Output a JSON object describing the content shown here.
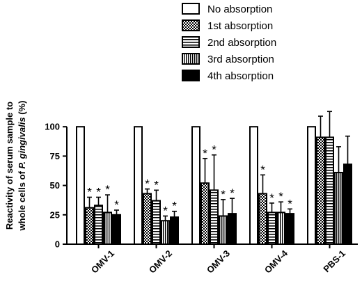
{
  "chart_data": {
    "type": "bar",
    "categories": [
      "OMV-1",
      "OMV-2",
      "OMV-3",
      "OMV-4",
      "PBS-1"
    ],
    "series": [
      {
        "name": "No absorption",
        "pattern": "none",
        "values": [
          100,
          100,
          100,
          100,
          100
        ],
        "errors": [
          0,
          0,
          0,
          0,
          0
        ],
        "stars": [
          false,
          false,
          false,
          false,
          false
        ]
      },
      {
        "name": "1st absorption",
        "pattern": "checker",
        "values": [
          31,
          43,
          52,
          43,
          91
        ],
        "errors": [
          9,
          4,
          21,
          16,
          18
        ],
        "stars": [
          true,
          true,
          true,
          true,
          false
        ]
      },
      {
        "name": "2nd absorption",
        "pattern": "hlines",
        "values": [
          33,
          37,
          46,
          27,
          91
        ],
        "errors": [
          7,
          9,
          30,
          8,
          22
        ],
        "stars": [
          true,
          true,
          true,
          true,
          false
        ]
      },
      {
        "name": "3rd absorption",
        "pattern": "vlines",
        "values": [
          27,
          20,
          24,
          27,
          61
        ],
        "errors": [
          15,
          4,
          14,
          9,
          22
        ],
        "stars": [
          true,
          true,
          true,
          true,
          false
        ]
      },
      {
        "name": "4th absorption",
        "pattern": "solid",
        "values": [
          25,
          23,
          26,
          26,
          68
        ],
        "errors": [
          4,
          5,
          13,
          4,
          24
        ],
        "stars": [
          true,
          true,
          true,
          true,
          false
        ]
      }
    ],
    "title": "",
    "xlabel": "",
    "ylabel_line1": "Reactivity of serum sample to",
    "ylabel_line2_prefix": "whole cells of ",
    "ylabel_line2_italic": "P. gingivalis",
    "ylabel_line2_suffix": " (%)",
    "ylim": [
      0,
      125
    ],
    "yticks": [
      0,
      25,
      50,
      75,
      100
    ],
    "ytick_labels": [
      "0",
      "25",
      "50",
      "75",
      "100"
    ],
    "star_symbol": "*",
    "grid": false,
    "legend_position": "top-right"
  }
}
